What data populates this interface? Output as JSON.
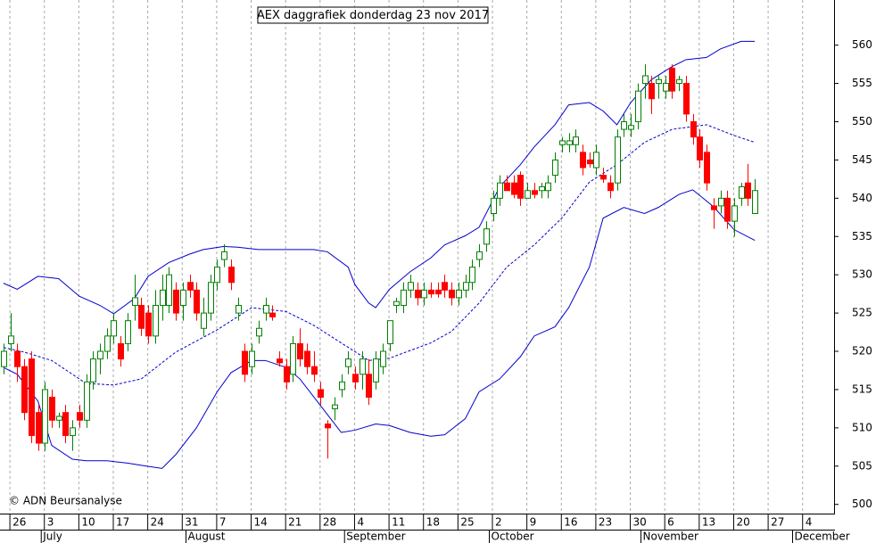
{
  "chart_data": {
    "type": "candlestick",
    "title": "AEX daggrafiek donderdag 23 nov 2017",
    "copyright": "© ADN Beursanalyse",
    "up_color": "#008000",
    "down_color": "#ff0000",
    "band_color": "#0000cc",
    "grid": true,
    "xlim": [
      -1.5,
      119.5
    ],
    "ylim": [
      498.8,
      565.9
    ],
    "yticks": [
      500,
      505,
      510,
      515,
      520,
      525,
      530,
      535,
      540,
      545,
      550,
      555,
      560
    ],
    "xticks": [
      {
        "value": 0,
        "label": "26"
      },
      {
        "value": 5,
        "label": "3"
      },
      {
        "value": 10,
        "label": "10"
      },
      {
        "value": 15,
        "label": "17"
      },
      {
        "value": 20,
        "label": "24"
      },
      {
        "value": 25,
        "label": "31"
      },
      {
        "value": 30,
        "label": "7"
      },
      {
        "value": 35,
        "label": "14"
      },
      {
        "value": 40,
        "label": "21"
      },
      {
        "value": 45,
        "label": "28"
      },
      {
        "value": 50,
        "label": "4"
      },
      {
        "value": 55,
        "label": "11"
      },
      {
        "value": 60,
        "label": "18"
      },
      {
        "value": 65,
        "label": "25"
      },
      {
        "value": 70,
        "label": "2"
      },
      {
        "value": 75,
        "label": "9"
      },
      {
        "value": 80,
        "label": "16"
      },
      {
        "value": 85,
        "label": "23"
      },
      {
        "value": 90,
        "label": "30"
      },
      {
        "value": 95,
        "label": "6"
      },
      {
        "value": 100,
        "label": "13"
      },
      {
        "value": 105,
        "label": "20"
      },
      {
        "value": 110,
        "label": "27"
      },
      {
        "value": 115,
        "label": "4"
      }
    ],
    "months": [
      {
        "value": 5,
        "label": "July"
      },
      {
        "value": 26,
        "label": "August"
      },
      {
        "value": 49,
        "label": "September"
      },
      {
        "value": 70,
        "label": "October"
      },
      {
        "value": 92,
        "label": "November"
      },
      {
        "value": 114,
        "label": "December"
      }
    ],
    "x": [
      -1,
      0,
      1,
      2,
      3,
      4,
      5,
      6,
      7,
      8,
      9,
      10,
      11,
      12,
      13,
      14,
      15,
      16,
      17,
      18,
      19,
      20,
      21,
      22,
      23,
      24,
      25,
      26,
      27,
      28,
      29,
      30,
      31,
      32,
      33,
      34,
      35,
      36,
      37,
      38,
      39,
      40,
      41,
      42,
      43,
      44,
      45,
      46,
      47,
      48,
      49,
      50,
      51,
      52,
      53,
      54,
      55,
      56,
      57,
      58,
      59,
      60,
      61,
      62,
      63,
      64,
      65,
      66,
      67,
      68,
      69,
      70,
      71,
      72,
      73,
      74,
      75,
      76,
      77,
      78,
      79,
      80,
      81,
      82,
      83,
      84,
      85,
      86,
      87,
      88,
      89,
      90,
      91,
      92,
      93,
      94,
      95,
      96,
      97,
      98,
      99,
      100,
      101,
      102,
      103,
      104,
      105,
      106,
      107,
      108
    ],
    "open": [
      518,
      521,
      520,
      518,
      519,
      512,
      508,
      514,
      511,
      512,
      509,
      512,
      511,
      516,
      519,
      520,
      522,
      521,
      521,
      526,
      526,
      525,
      522,
      526,
      526,
      528,
      526,
      529,
      528,
      523,
      525,
      529,
      532,
      531,
      525,
      520,
      518,
      522,
      525,
      525,
      519,
      518,
      517,
      521,
      520,
      518,
      515,
      510.5,
      512.5,
      515,
      518,
      517,
      517,
      517,
      516,
      518,
      521,
      526,
      526,
      528,
      528,
      527,
      528,
      528,
      529,
      528,
      527,
      528,
      529,
      532,
      534,
      538,
      540,
      542,
      542,
      543,
      540,
      541,
      541,
      541,
      543,
      547,
      547,
      547,
      546,
      545,
      544,
      543,
      542,
      542,
      549,
      549,
      550,
      555,
      555,
      555,
      554,
      557,
      555,
      555,
      550,
      548,
      546,
      539,
      539,
      540,
      537,
      540,
      542,
      538
    ],
    "high": [
      521,
      525,
      521,
      519,
      520,
      513,
      516,
      515,
      512,
      513,
      511,
      513,
      517,
      520,
      521,
      523,
      525,
      522,
      525,
      530,
      527,
      526,
      528,
      530,
      531,
      529,
      529,
      530,
      529,
      527,
      530,
      532,
      534,
      532,
      527,
      521,
      521,
      524,
      527,
      526,
      520,
      519,
      522,
      523,
      521,
      520,
      516,
      511,
      514,
      517,
      520,
      518,
      520,
      519,
      520,
      521,
      524,
      527,
      529,
      530,
      529,
      529,
      529,
      529,
      530,
      529,
      529,
      530,
      532,
      534,
      537,
      541,
      543,
      543,
      543,
      543.5,
      542,
      542,
      542,
      543,
      546,
      548,
      548.5,
      549,
      547,
      546,
      547,
      544,
      543,
      549,
      551,
      551,
      555,
      557.5,
      556,
      556,
      556,
      557.5,
      556,
      556,
      551,
      549,
      547,
      540,
      541,
      541,
      540,
      542,
      544.5,
      542.5
    ],
    "low": [
      517,
      520,
      516,
      511,
      508,
      507,
      507,
      510,
      510,
      508,
      507,
      510,
      510,
      515,
      517,
      519,
      521,
      518,
      520,
      524,
      522,
      521,
      521,
      524,
      525,
      524,
      524,
      527,
      524,
      522,
      524,
      528,
      531,
      528,
      524,
      516,
      517,
      521,
      524,
      524,
      518,
      515,
      516,
      518,
      517,
      516,
      513,
      506,
      511,
      514,
      517,
      515,
      515,
      513,
      515,
      517,
      520,
      525,
      525,
      527,
      526,
      526,
      527,
      527,
      527,
      526,
      526,
      527,
      528,
      531,
      533,
      537,
      539,
      541,
      540,
      539,
      540,
      540,
      540,
      540,
      542,
      546,
      546,
      546,
      543,
      544,
      543,
      542,
      540,
      541,
      548,
      548,
      549,
      553,
      551,
      553,
      553,
      553,
      554,
      550,
      547,
      544,
      541,
      536,
      538,
      536,
      535,
      539,
      539,
      538
    ],
    "close": [
      520,
      522,
      518,
      512,
      509,
      508,
      515,
      511,
      511.5,
      509,
      510,
      511,
      516,
      519,
      520,
      522,
      524,
      519,
      524,
      527,
      523,
      522,
      526,
      528,
      530,
      525,
      528,
      528,
      525,
      525,
      529,
      531,
      533,
      529,
      526,
      517,
      520,
      523,
      526,
      524.5,
      518.5,
      516,
      521,
      519,
      518,
      517,
      514,
      510,
      513,
      516,
      519,
      516,
      519,
      514,
      519,
      520,
      524,
      526.5,
      528,
      529,
      527,
      528,
      527.5,
      527.5,
      528,
      527,
      528,
      529,
      531,
      533,
      536,
      540,
      542,
      541,
      540.5,
      540,
      541,
      540.5,
      541.5,
      542,
      545,
      547.5,
      547.5,
      548,
      544,
      544.5,
      546,
      542.5,
      541,
      548,
      550,
      549.5,
      554,
      556,
      553,
      555.5,
      555,
      554,
      555.5,
      551,
      548,
      545,
      542,
      538.5,
      540,
      537,
      539,
      541.5,
      540,
      541
    ],
    "bands": [
      {
        "color": "#0000cc",
        "dashed": false,
        "x": [
          -1,
          1,
          4,
          7,
          10,
          13,
          15,
          18,
          20,
          23,
          26,
          28,
          31,
          33,
          36,
          44,
          46,
          49,
          50,
          52,
          53,
          55,
          58,
          61,
          63,
          66,
          68,
          71,
          74,
          76,
          79,
          81,
          84,
          86,
          88,
          90,
          93,
          96,
          98,
          101,
          103,
          106,
          108
        ],
        "values": [
          528.9,
          528.1,
          529.8,
          529.5,
          527.2,
          526,
          524.9,
          526.9,
          529.8,
          531.6,
          532.7,
          533.3,
          533.7,
          533.6,
          533.3,
          533.3,
          533,
          531,
          528.7,
          526.3,
          525.7,
          528.1,
          530.4,
          532.2,
          533.9,
          535.1,
          536.2,
          541.5,
          544.4,
          546.7,
          549.6,
          552.2,
          552.5,
          551.4,
          549.6,
          552.5,
          555.5,
          557.2,
          558.1,
          558.4,
          559.5,
          560.5,
          560.5
        ]
      },
      {
        "color": "#0000cc",
        "dashed": true,
        "x": [
          -1,
          2,
          6,
          11,
          15,
          19,
          24,
          30,
          35,
          40,
          44,
          48,
          52,
          55,
          61,
          64,
          68,
          72,
          76,
          80,
          84,
          88,
          92,
          96,
          101,
          105,
          108
        ],
        "values": [
          520.5,
          519.9,
          518.8,
          515.8,
          515.6,
          516.4,
          519.9,
          522.8,
          525.7,
          525.2,
          523.4,
          521.1,
          518.8,
          519.1,
          521.1,
          522.6,
          526.3,
          531,
          533.9,
          537.4,
          542.1,
          544.4,
          547.3,
          549,
          549.6,
          548.2,
          547.3
        ]
      },
      {
        "color": "#0000cc",
        "dashed": false,
        "x": [
          -1,
          1,
          4,
          6,
          9,
          11,
          14,
          17,
          19,
          22,
          24,
          27,
          30,
          32,
          35,
          37,
          40,
          42,
          45,
          48,
          50,
          53,
          55,
          58,
          61,
          63,
          66,
          68,
          71,
          74,
          76,
          79,
          81,
          84,
          86,
          89,
          92,
          94,
          97,
          99,
          102,
          105,
          108
        ],
        "values": [
          517.9,
          517,
          513.5,
          507.7,
          505.9,
          505.7,
          505.7,
          505.4,
          505.1,
          504.7,
          506.5,
          510,
          514.7,
          517.2,
          518.8,
          518.8,
          517.9,
          516.4,
          512.9,
          509.4,
          509.7,
          510.5,
          510.3,
          509.4,
          508.9,
          509.1,
          511.2,
          514.7,
          516.4,
          519.3,
          522,
          523.2,
          525.7,
          531,
          537.4,
          538.8,
          538,
          538.8,
          540.5,
          541.1,
          538.9,
          535.9,
          534.5
        ]
      }
    ]
  }
}
